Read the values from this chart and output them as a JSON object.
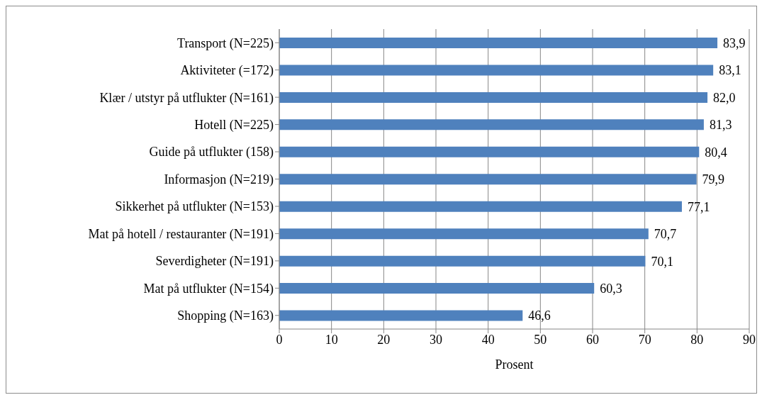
{
  "chart_data": {
    "type": "bar",
    "orientation": "horizontal",
    "xlabel": "Prosent",
    "categories": [
      "Transport (N=225)",
      "Aktiviteter (=172)",
      "Klær / utstyr på utflukter (N=161)",
      "Hotell (N=225)",
      "Guide på utflukter (158)",
      "Informasjon (N=219)",
      "Sikkerhet på utflukter (N=153)",
      "Mat på hotell / restauranter (N=191)",
      "Severdigheter (N=191)",
      "Mat på utflukter (N=154)",
      "Shopping (N=163)"
    ],
    "values": [
      83.9,
      83.1,
      82.0,
      81.3,
      80.4,
      79.9,
      77.1,
      70.7,
      70.1,
      60.3,
      46.6
    ],
    "value_labels": [
      "83,9",
      "83,1",
      "82,0",
      "81,3",
      "80,4",
      "79,9",
      "77,1",
      "70,7",
      "70,1",
      "60,3",
      "46,6"
    ],
    "color": "#4f81bd",
    "xlim": [
      0,
      90
    ],
    "xticks": [
      0,
      10,
      20,
      30,
      40,
      50,
      60,
      70,
      80,
      90
    ],
    "grid": "x"
  }
}
